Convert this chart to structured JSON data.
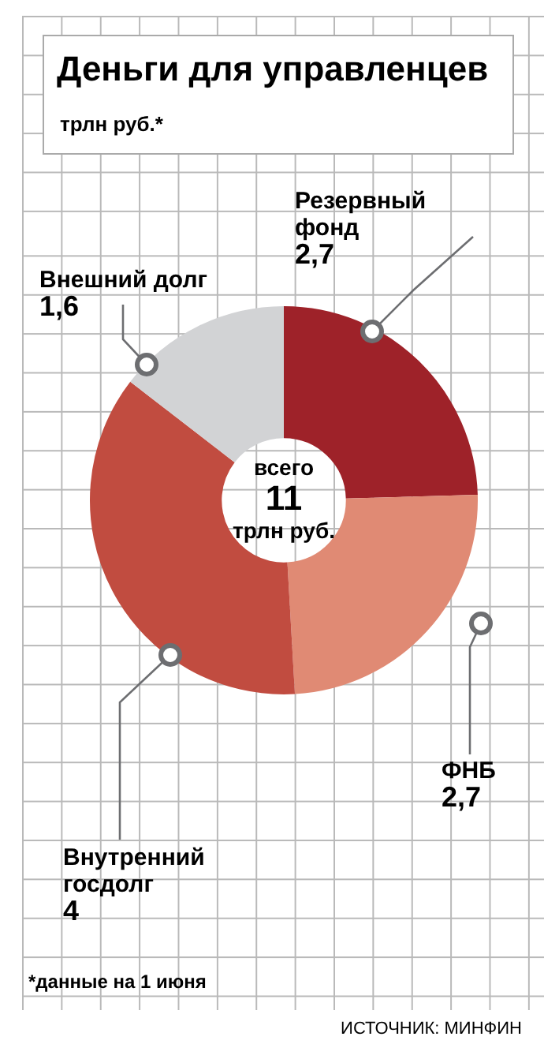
{
  "chart_data": {
    "type": "donut",
    "title": "Деньги для управленцев",
    "subtitle": "трлн руб.*",
    "categories": [
      "Резервный фонд",
      "ФНБ",
      "Внутренний госдолг",
      "Внешний долг"
    ],
    "values": [
      2.7,
      2.7,
      4,
      1.6
    ],
    "value_labels": [
      "2,7",
      "2,7",
      "4",
      "1,6"
    ],
    "colors": [
      "#9e2229",
      "#e08a74",
      "#c14c40",
      "#d2d3d5"
    ],
    "annotations": [
      "всего\n11\nтрлн руб.",
      "*данные на 1 июня",
      "ИСТОЧНИК: МИНФИН"
    ],
    "legend": false
  }
}
